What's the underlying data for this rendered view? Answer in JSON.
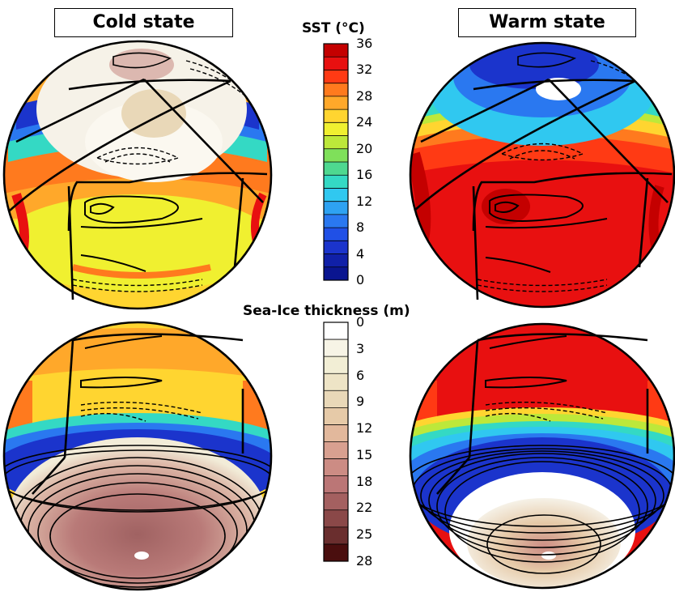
{
  "panels": {
    "cold_title": "Cold state",
    "warm_title": "Warm state"
  },
  "sst_colorbar": {
    "title": "SST (",
    "title_unit": "°C)",
    "ticks": [
      "36",
      "32",
      "28",
      "24",
      "20",
      "16",
      "12",
      "8",
      "4",
      "0"
    ],
    "colors": [
      "#c40000",
      "#e81010",
      "#ff3a14",
      "#ff7a1e",
      "#ffa82a",
      "#ffd530",
      "#f0f030",
      "#bde83a",
      "#7fe05a",
      "#4ed890",
      "#34d9c4",
      "#30c8f0",
      "#2ea2f2",
      "#2a78f0",
      "#2050e6",
      "#1b34cc",
      "#1020a8",
      "#0a1590"
    ]
  },
  "ice_colorbar": {
    "title": "Sea-Ice thickness (m)",
    "ticks": [
      "0",
      "3",
      "6",
      "9",
      "12",
      "15",
      "18",
      "22",
      "25",
      "28"
    ],
    "colors": [
      "#ffffff",
      "#f7f4e6",
      "#f2eed5",
      "#eee4c6",
      "#e9d8b8",
      "#e6caa8",
      "#e2b89c",
      "#d8a090",
      "#cc8c84",
      "#bb7676",
      "#a46060",
      "#8a4848",
      "#6a2e2e",
      "#4a0e0e"
    ]
  },
  "colors": {
    "ice": "#f6f2e8",
    "deep_blue": "#1b34cc",
    "warm_red": "#e81010"
  }
}
